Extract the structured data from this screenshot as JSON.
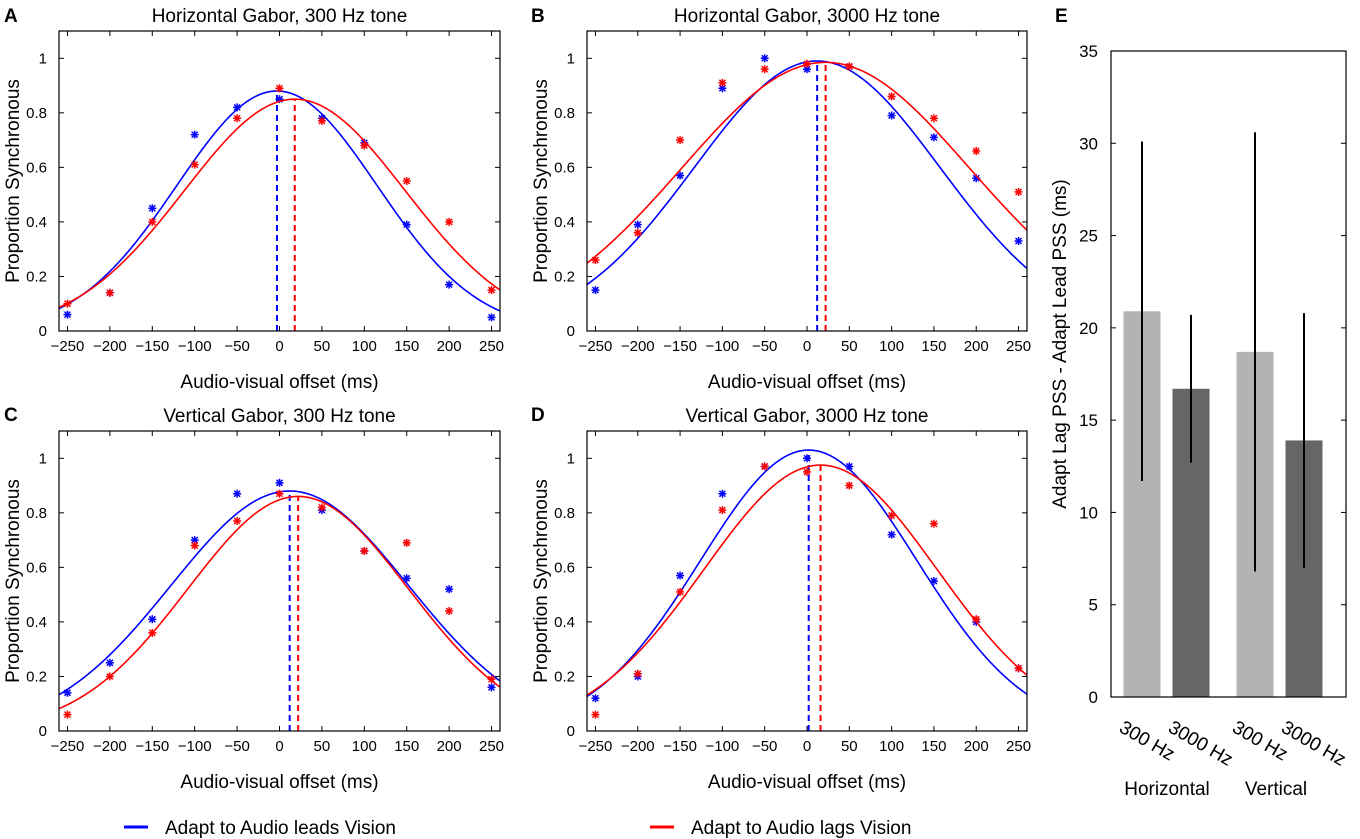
{
  "figure": {
    "legend": [
      {
        "label": "Adapt to Audio leads Vision",
        "color": "#0000ff"
      },
      {
        "label": "Adapt to Audio lags Vision",
        "color": "#ff0000"
      }
    ]
  },
  "chart_data": [
    {
      "panel": "A",
      "type": "scatter",
      "title": "Horizontal Gabor, 300 Hz tone",
      "xlabel": "Audio-visual offset (ms)",
      "ylabel": "Proportion Synchronous",
      "xlim": [
        -260,
        260
      ],
      "ylim": [
        0,
        1.1
      ],
      "xticks": [
        -250,
        -200,
        -150,
        -100,
        -50,
        0,
        50,
        100,
        150,
        200,
        250
      ],
      "yticks": [
        0,
        0.2,
        0.4,
        0.6,
        0.8,
        1
      ],
      "x": [
        -250,
        -200,
        -150,
        -100,
        -50,
        0,
        50,
        100,
        150,
        200,
        250
      ],
      "series": [
        {
          "name": "Adapt to Audio leads Vision",
          "color": "#0000ff",
          "values": [
            0.06,
            0.14,
            0.45,
            0.72,
            0.82,
            0.85,
            0.78,
            0.69,
            0.39,
            0.17,
            0.05
          ],
          "fit": {
            "amp": 0.88,
            "mu": -3,
            "sigma": 118
          },
          "pss": -3
        },
        {
          "name": "Adapt to Audio lags Vision",
          "color": "#ff0000",
          "values": [
            0.1,
            0.14,
            0.4,
            0.61,
            0.78,
            0.89,
            0.77,
            0.68,
            0.55,
            0.4,
            0.15
          ],
          "fit": {
            "amp": 0.85,
            "mu": 18,
            "sigma": 130
          },
          "pss": 18
        }
      ]
    },
    {
      "panel": "B",
      "type": "scatter",
      "title": "Horizontal Gabor, 3000 Hz tone",
      "xlabel": "Audio-visual offset (ms)",
      "ylabel": "Proportion Synchronous",
      "xlim": [
        -260,
        260
      ],
      "ylim": [
        0,
        1.1
      ],
      "xticks": [
        -250,
        -200,
        -150,
        -100,
        -50,
        0,
        50,
        100,
        150,
        200,
        250
      ],
      "yticks": [
        0,
        0.2,
        0.4,
        0.6,
        0.8,
        1
      ],
      "x": [
        -250,
        -200,
        -150,
        -100,
        -50,
        0,
        50,
        100,
        150,
        200,
        250
      ],
      "series": [
        {
          "name": "Adapt to Audio leads Vision",
          "color": "#0000ff",
          "values": [
            0.15,
            0.39,
            0.57,
            0.89,
            1.0,
            0.96,
            0.97,
            0.79,
            0.71,
            0.56,
            0.33
          ],
          "fit": {
            "amp": 0.99,
            "mu": 12,
            "sigma": 145
          },
          "pss": 12
        },
        {
          "name": "Adapt to Audio lags Vision",
          "color": "#ff0000",
          "values": [
            0.26,
            0.36,
            0.7,
            0.91,
            0.96,
            0.98,
            0.97,
            0.86,
            0.78,
            0.66,
            0.51
          ],
          "fit": {
            "amp": 0.985,
            "mu": 22,
            "sigma": 170
          },
          "pss": 22
        }
      ]
    },
    {
      "panel": "C",
      "type": "scatter",
      "title": "Vertical Gabor, 300 Hz tone",
      "xlabel": "Audio-visual offset (ms)",
      "ylabel": "Proportion Synchronous",
      "xlim": [
        -260,
        260
      ],
      "ylim": [
        0,
        1.1
      ],
      "xticks": [
        -250,
        -200,
        -150,
        -100,
        -50,
        0,
        50,
        100,
        150,
        200,
        250
      ],
      "yticks": [
        0,
        0.2,
        0.4,
        0.6,
        0.8,
        1
      ],
      "x": [
        -250,
        -200,
        -150,
        -100,
        -50,
        0,
        50,
        100,
        150,
        200,
        250
      ],
      "series": [
        {
          "name": "Adapt to Audio leads Vision",
          "color": "#0000ff",
          "values": [
            0.14,
            0.25,
            0.41,
            0.7,
            0.87,
            0.91,
            0.81,
            0.66,
            0.56,
            0.52,
            0.16
          ],
          "fit": {
            "amp": 0.88,
            "mu": 12,
            "sigma": 140
          },
          "pss": 12
        },
        {
          "name": "Adapt to Audio lags Vision",
          "color": "#ff0000",
          "values": [
            0.06,
            0.2,
            0.36,
            0.68,
            0.77,
            0.87,
            0.82,
            0.66,
            0.69,
            0.44,
            0.19
          ],
          "fit": {
            "amp": 0.86,
            "mu": 22,
            "sigma": 130
          },
          "pss": 22
        }
      ]
    },
    {
      "panel": "D",
      "type": "scatter",
      "title": "Vertical Gabor, 3000 Hz tone",
      "xlabel": "Audio-visual offset (ms)",
      "ylabel": "Proportion Synchronous",
      "xlim": [
        -260,
        260
      ],
      "ylim": [
        0,
        1.1
      ],
      "xticks": [
        -250,
        -200,
        -150,
        -100,
        -50,
        0,
        50,
        100,
        150,
        200,
        250
      ],
      "yticks": [
        0,
        0.2,
        0.4,
        0.6,
        0.8,
        1
      ],
      "x": [
        -250,
        -200,
        -150,
        -100,
        -50,
        0,
        50,
        100,
        150,
        200,
        250
      ],
      "series": [
        {
          "name": "Adapt to Audio leads Vision",
          "color": "#0000ff",
          "values": [
            0.12,
            0.2,
            0.57,
            0.87,
            0.97,
            1.0,
            0.97,
            0.72,
            0.55,
            0.4,
            0.23
          ],
          "fit": {
            "amp": 1.03,
            "mu": 2,
            "sigma": 128
          },
          "pss": 2
        },
        {
          "name": "Adapt to Audio lags Vision",
          "color": "#ff0000",
          "values": [
            0.06,
            0.21,
            0.51,
            0.81,
            0.97,
            0.95,
            0.9,
            0.79,
            0.76,
            0.41,
            0.23
          ],
          "fit": {
            "amp": 0.975,
            "mu": 16,
            "sigma": 138
          },
          "pss": 16
        }
      ]
    },
    {
      "panel": "E",
      "type": "bar",
      "ylabel": "Adapt Lag PSS - Adapt Lead PSS (ms)",
      "ylim": [
        0,
        35
      ],
      "yticks": [
        0,
        5,
        10,
        15,
        20,
        25,
        30,
        35
      ],
      "categories": [
        "300 Hz",
        "3000 Hz",
        "300 Hz",
        "3000 Hz"
      ],
      "groups": [
        "Horizontal",
        "Vertical"
      ],
      "values": [
        20.9,
        16.7,
        18.7,
        13.9
      ],
      "error_low": [
        11.7,
        12.7,
        6.8,
        7.0
      ],
      "error_high": [
        30.1,
        20.7,
        30.6,
        20.8
      ],
      "colors": [
        "#b3b3b3",
        "#666666",
        "#b3b3b3",
        "#666666"
      ]
    }
  ]
}
